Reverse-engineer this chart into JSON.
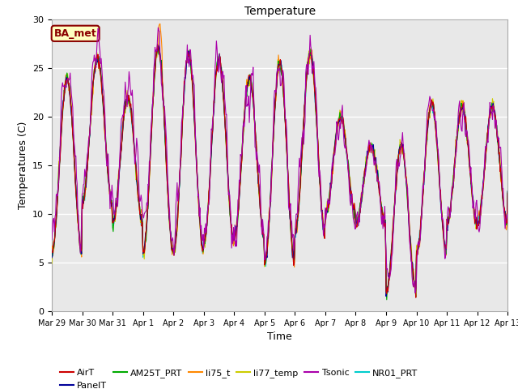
{
  "title": "Temperature",
  "ylabel": "Temperatures (C)",
  "xlabel": "Time",
  "annotation_text": "BA_met",
  "annotation_color": "#8B0000",
  "annotation_bg": "#FFFFC0",
  "annotation_border": "#8B0000",
  "ylim": [
    0,
    30
  ],
  "yticks": [
    0,
    5,
    10,
    15,
    20,
    25,
    30
  ],
  "xtick_labels": [
    "Mar 29",
    "Mar 30",
    "Mar 31",
    "Apr 1",
    "Apr 2",
    "Apr 3",
    "Apr 4",
    "Apr 5",
    "Apr 6",
    "Apr 7",
    "Apr 8",
    "Apr 9",
    "Apr 10",
    "Apr 11",
    "Apr 12",
    "Apr 13"
  ],
  "bg_color": "#E8E8E8",
  "series_colors": {
    "AirT": "#CC0000",
    "PanelT": "#000099",
    "AM25T_PRT": "#00AA00",
    "li75_t": "#FF8800",
    "li77_temp": "#CCCC00",
    "Tsonic": "#AA00AA",
    "NR01_PRT": "#00CCCC"
  },
  "legend_order": [
    "AirT",
    "PanelT",
    "AM25T_PRT",
    "li75_t",
    "li77_temp",
    "Tsonic",
    "NR01_PRT"
  ]
}
